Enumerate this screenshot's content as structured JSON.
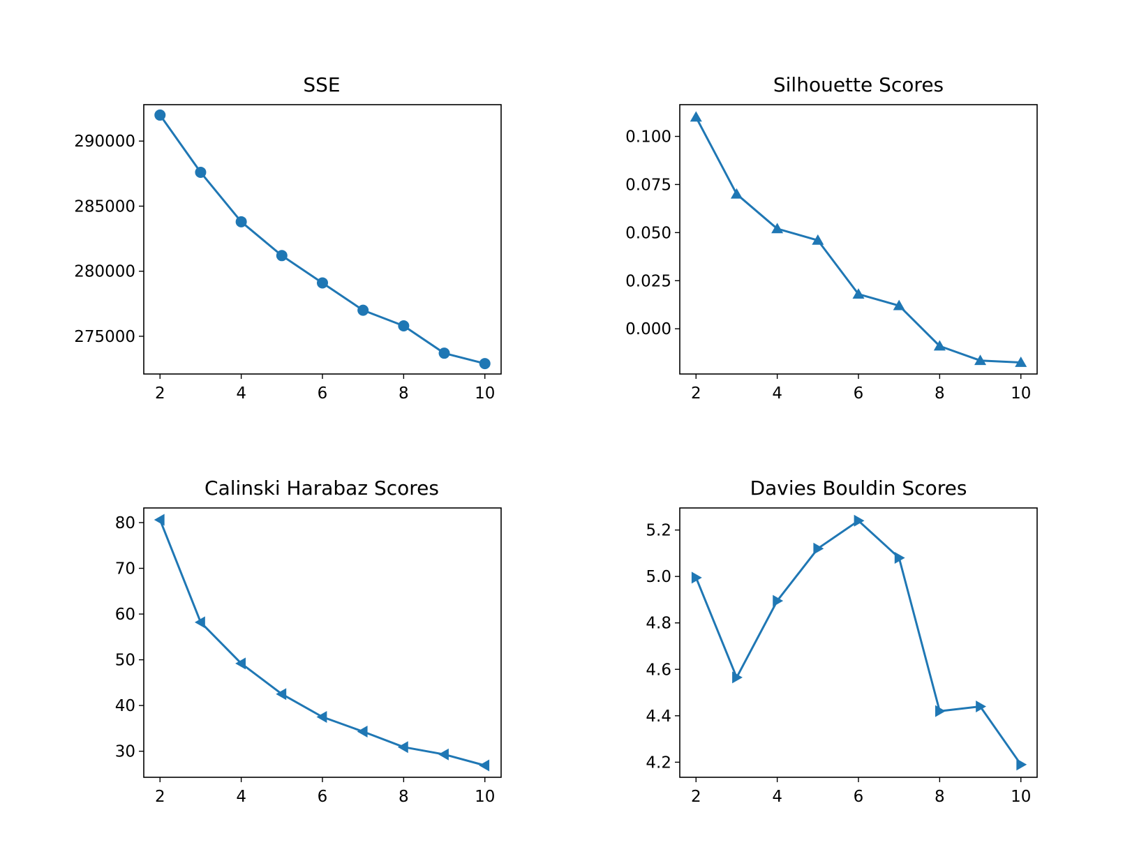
{
  "chart_data": [
    {
      "type": "line",
      "title": "SSE",
      "marker": "circle",
      "color": "#1f77b4",
      "x": [
        2,
        3,
        4,
        5,
        6,
        7,
        8,
        9,
        10
      ],
      "y": [
        292000,
        287600,
        283800,
        281200,
        279100,
        277000,
        275800,
        273700,
        272900
      ],
      "xlim": [
        1.6,
        10.4
      ],
      "ylim": [
        272100,
        292800
      ],
      "xticks": [
        2,
        4,
        6,
        8,
        10
      ],
      "yticks": [
        275000,
        280000,
        285000,
        290000
      ],
      "xtick_labels": [
        "2",
        "4",
        "6",
        "8",
        "10"
      ],
      "ytick_labels": [
        "275000",
        "280000",
        "285000",
        "290000"
      ],
      "grid": false
    },
    {
      "type": "line",
      "title": "Silhouette Scores",
      "marker": "triangle-up",
      "color": "#1f77b4",
      "x": [
        2,
        3,
        4,
        5,
        6,
        7,
        8,
        9,
        10
      ],
      "y": [
        0.11,
        0.07,
        0.052,
        0.046,
        0.018,
        0.012,
        -0.009,
        -0.0165,
        -0.0175
      ],
      "xlim": [
        1.6,
        10.4
      ],
      "ylim": [
        -0.0235,
        0.1165
      ],
      "xticks": [
        2,
        4,
        6,
        8,
        10
      ],
      "yticks": [
        0.0,
        0.025,
        0.05,
        0.075,
        0.1
      ],
      "xtick_labels": [
        "2",
        "4",
        "6",
        "8",
        "10"
      ],
      "ytick_labels": [
        "0.000",
        "0.025",
        "0.050",
        "0.075",
        "0.100"
      ],
      "grid": false
    },
    {
      "type": "line",
      "title": "Calinski Harabaz Scores",
      "marker": "triangle-left",
      "color": "#1f77b4",
      "x": [
        2,
        3,
        4,
        5,
        6,
        7,
        8,
        9,
        10
      ],
      "y": [
        80.6,
        58.2,
        49.2,
        42.5,
        37.5,
        34.3,
        30.9,
        29.3,
        26.9
      ],
      "xlim": [
        1.6,
        10.4
      ],
      "ylim": [
        24.3,
        83.2
      ],
      "xticks": [
        2,
        4,
        6,
        8,
        10
      ],
      "yticks": [
        30,
        40,
        50,
        60,
        70,
        80
      ],
      "xtick_labels": [
        "2",
        "4",
        "6",
        "8",
        "10"
      ],
      "ytick_labels": [
        "30",
        "40",
        "50",
        "60",
        "70",
        "80"
      ],
      "grid": false
    },
    {
      "type": "line",
      "title": "Davies Bouldin Scores",
      "marker": "triangle-right",
      "color": "#1f77b4",
      "x": [
        2,
        3,
        4,
        5,
        6,
        7,
        8,
        9,
        10
      ],
      "y": [
        4.995,
        4.565,
        4.895,
        5.12,
        5.24,
        5.08,
        4.42,
        4.44,
        4.19
      ],
      "xlim": [
        1.6,
        10.4
      ],
      "ylim": [
        4.135,
        5.295
      ],
      "xticks": [
        2,
        4,
        6,
        8,
        10
      ],
      "yticks": [
        4.2,
        4.4,
        4.6,
        4.8,
        5.0,
        5.2
      ],
      "xtick_labels": [
        "2",
        "4",
        "6",
        "8",
        "10"
      ],
      "ytick_labels": [
        "4.2",
        "4.4",
        "4.6",
        "4.8",
        "5.0",
        "5.2"
      ],
      "grid": false
    }
  ]
}
